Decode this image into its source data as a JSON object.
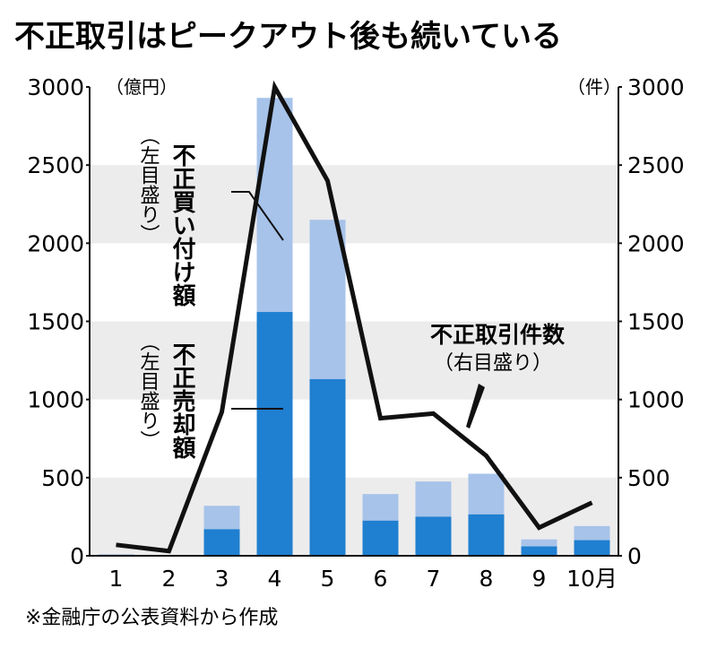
{
  "chart_data": {
    "type": "bar+line",
    "title": "不正取引はピークアウト後も続いている",
    "categories": [
      "1",
      "2",
      "3",
      "4",
      "5",
      "6",
      "7",
      "8",
      "9",
      "10月"
    ],
    "left_axis": {
      "unit": "（億円）",
      "ylim": [
        0,
        3000
      ],
      "ticks": [
        0,
        500,
        1000,
        1500,
        2000,
        2500,
        3000
      ]
    },
    "right_axis": {
      "unit": "（件）",
      "ylim": [
        0,
        3000
      ],
      "ticks": [
        0,
        500,
        1000,
        1500,
        2000,
        2500,
        3000
      ]
    },
    "series": [
      {
        "name": "不正売却額",
        "name_sub": "（左目盛り）",
        "axis": "left",
        "kind": "bar-stack-bottom",
        "color": "#1f7fd0",
        "values": [
          5,
          2,
          170,
          1560,
          1130,
          225,
          250,
          265,
          60,
          100
        ]
      },
      {
        "name": "不正買い付け額",
        "name_sub": "（左目盛り）",
        "axis": "left",
        "kind": "bar-stack-top",
        "color": "#a7c3ea",
        "values": [
          5,
          2,
          150,
          1370,
          1020,
          170,
          225,
          260,
          45,
          90
        ]
      },
      {
        "name": "不正取引件数",
        "name_sub": "（右目盛り）",
        "axis": "right",
        "kind": "line",
        "color": "#111111",
        "values": [
          70,
          30,
          920,
          3000,
          2400,
          880,
          910,
          640,
          180,
          340
        ]
      }
    ],
    "grid": "alternating horizontal bands",
    "source": "※金融庁の公表資料から作成"
  }
}
